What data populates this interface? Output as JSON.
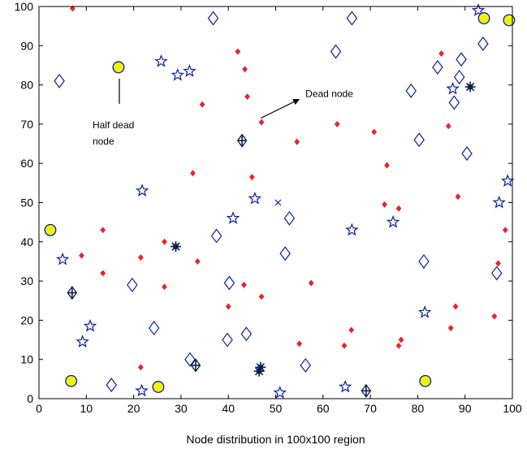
{
  "chart_data": {
    "type": "scatter",
    "title": "",
    "xlabel": "Node distribution in 100x100 region",
    "ylabel": "",
    "xlim": [
      0,
      100
    ],
    "ylim": [
      0,
      100
    ],
    "xticks": [
      0,
      10,
      20,
      30,
      40,
      50,
      60,
      70,
      80,
      90,
      100
    ],
    "yticks": [
      0,
      10,
      20,
      30,
      40,
      50,
      60,
      70,
      80,
      90,
      100
    ],
    "grid": false,
    "annotations": [
      {
        "text_lines": [
          "Half dead",
          "node"
        ],
        "points_to": [
          16.8,
          84.5
        ]
      },
      {
        "text_lines": [
          "Dead node"
        ],
        "points_to": [
          47.2,
          70.5
        ]
      }
    ],
    "series": [
      {
        "marker": "diamond-filled",
        "color": "#e8232a",
        "x": [
          7.1,
          42,
          43.5,
          44,
          34.5,
          47,
          54.5,
          63,
          70.8,
          73.5,
          85,
          86.5,
          88.5,
          76,
          73,
          97,
          98.5,
          96.2,
          87,
          88,
          76.5,
          76,
          66,
          64.5,
          55,
          47,
          43.3,
          40,
          33.5,
          32.5,
          26.5,
          26.5,
          21.5,
          21.5,
          13.5,
          13.5,
          9,
          45,
          57.5
        ],
        "y": [
          99.5,
          88.5,
          84,
          77,
          75,
          70.5,
          65.5,
          70,
          68,
          59.5,
          88,
          69.5,
          51.5,
          48.5,
          49.5,
          34.5,
          43,
          21,
          18,
          23.5,
          15,
          13.5,
          17.5,
          13.5,
          14,
          26,
          29,
          23.5,
          35,
          57.5,
          40,
          28.5,
          8,
          36,
          43,
          32,
          36.5,
          56.5,
          29.5
        ]
      },
      {
        "marker": "diamond-open",
        "color": "#0a1f9e",
        "x": [
          4.3,
          36.8,
          66.1,
          62.7,
          78.6,
          84.2,
          89.2,
          88.8,
          87.7,
          80.3,
          93.8,
          90.4,
          52.9,
          52,
          37.5,
          40.2,
          39.8,
          43.8,
          56.3,
          31.9,
          24.3,
          19.7,
          15.3,
          81.3,
          96.7
        ],
        "y": [
          81,
          97,
          97,
          88.5,
          78.5,
          84.5,
          86.5,
          82,
          75.5,
          66,
          90.5,
          62.5,
          46,
          37,
          41.5,
          29.5,
          15,
          16.5,
          8.5,
          10,
          18,
          29,
          3.5,
          35,
          32
        ]
      },
      {
        "marker": "star-open",
        "color": "#0a1f9e",
        "x": [
          25.8,
          29.3,
          31.8,
          21.8,
          41,
          45.6,
          66.1,
          74.8,
          87.4,
          92.8,
          99,
          97.2,
          81.5,
          64.7,
          50.9,
          5,
          10.8,
          9.2,
          21.7
        ],
        "y": [
          86,
          82.5,
          83.5,
          53,
          46,
          51,
          43,
          45,
          79,
          99,
          55.5,
          50,
          22,
          3,
          1.5,
          35.5,
          18.5,
          14.5,
          2
        ]
      },
      {
        "marker": "circle-yellow",
        "color": "#f2f20a",
        "x": [
          16.8,
          2.4,
          6.8,
          25.2,
          81.6,
          94,
          99.3
        ],
        "y": [
          84.5,
          43,
          4.5,
          3,
          4.5,
          97,
          96.5
        ]
      },
      {
        "marker": "x",
        "color": "#0a1f9e",
        "x": [
          50.5
        ],
        "y": [
          50
        ]
      },
      {
        "marker": "asterisk",
        "color": "#0a1f4d",
        "x": [
          28.9,
          46.8,
          46.5,
          91.1
        ],
        "y": [
          38.8,
          8,
          7,
          79.5
        ]
      },
      {
        "marker": "plus-diamond",
        "color": "#0a1f4d",
        "x": [
          42.9,
          7,
          33.1,
          69.1
        ],
        "y": [
          65.8,
          27,
          8.5,
          2
        ]
      }
    ]
  }
}
